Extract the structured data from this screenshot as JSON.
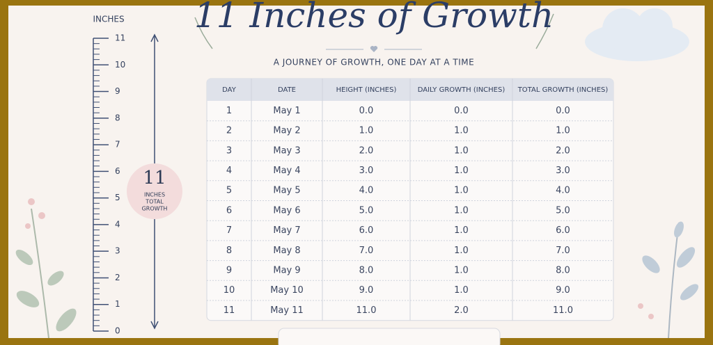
{
  "header": {
    "title": "11 Inches of Growth",
    "subtitle": "A JOURNEY OF GROWTH, ONE DAY AT A TIME"
  },
  "ruler": {
    "label": "INCHES",
    "range": [
      0,
      11
    ],
    "ticks": [
      0,
      1,
      2,
      3,
      4,
      5,
      6,
      7,
      8,
      9,
      10,
      11
    ]
  },
  "badge": {
    "value": "11",
    "lines": [
      "INCHES",
      "TOTAL",
      "GROWTH"
    ]
  },
  "table": {
    "columns": [
      "DAY",
      "DATE",
      "HEIGHT (INCHES)",
      "DAILY GROWTH (INCHES)",
      "TOTAL GROWTH (INCHES)"
    ],
    "rows": [
      [
        "1",
        "May 1",
        "0.0",
        "0.0",
        "0.0"
      ],
      [
        "2",
        "May 2",
        "1.0",
        "1.0",
        "1.0"
      ],
      [
        "3",
        "May 3",
        "2.0",
        "1.0",
        "2.0"
      ],
      [
        "4",
        "May 4",
        "3.0",
        "1.0",
        "3.0"
      ],
      [
        "5",
        "May 5",
        "4.0",
        "1.0",
        "4.0"
      ],
      [
        "6",
        "May 6",
        "5.0",
        "1.0",
        "5.0"
      ],
      [
        "7",
        "May 7",
        "6.0",
        "1.0",
        "6.0"
      ],
      [
        "8",
        "May 8",
        "7.0",
        "1.0",
        "7.0"
      ],
      [
        "9",
        "May 9",
        "8.0",
        "1.0",
        "8.0"
      ],
      [
        "10",
        "May 10",
        "9.0",
        "1.0",
        "9.0"
      ],
      [
        "11",
        "May 11",
        "11.0",
        "2.0",
        "11.0"
      ]
    ]
  }
}
